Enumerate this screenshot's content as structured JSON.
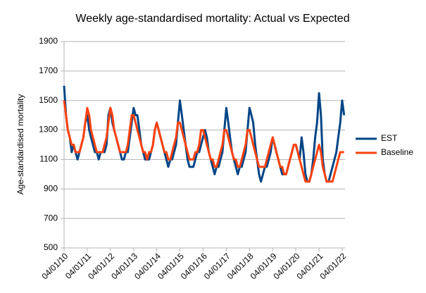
{
  "chart_data": {
    "type": "line",
    "title": "Weekly age-standardised mortality: Actual vs Expected",
    "y_label": "Age-standardised mortality",
    "x": [
      "04/01/10",
      "04/02/10",
      "04/03/10",
      "04/04/10",
      "04/05/10",
      "04/06/10",
      "04/07/10",
      "04/08/10",
      "04/09/10",
      "04/10/10",
      "04/11/10",
      "04/12/10",
      "04/01/11",
      "04/02/11",
      "04/03/11",
      "04/04/11",
      "04/05/11",
      "04/06/11",
      "04/07/11",
      "04/08/11",
      "04/09/11",
      "04/10/11",
      "04/11/11",
      "04/12/11",
      "04/01/12",
      "04/02/12",
      "04/03/12",
      "04/04/12",
      "04/05/12",
      "04/06/12",
      "04/07/12",
      "04/08/12",
      "04/09/12",
      "04/10/12",
      "04/11/12",
      "04/12/12",
      "04/01/13",
      "04/02/13",
      "04/03/13",
      "04/04/13",
      "04/05/13",
      "04/06/13",
      "04/07/13",
      "04/08/13",
      "04/09/13",
      "04/10/13",
      "04/11/13",
      "04/12/13",
      "04/01/14",
      "04/02/14",
      "04/03/14",
      "04/04/14",
      "04/05/14",
      "04/06/14",
      "04/07/14",
      "04/08/14",
      "04/09/14",
      "04/10/14",
      "04/11/14",
      "04/12/14",
      "04/01/15",
      "04/02/15",
      "04/03/15",
      "04/04/15",
      "04/05/15",
      "04/06/15",
      "04/07/15",
      "04/08/15",
      "04/09/15",
      "04/10/15",
      "04/11/15",
      "04/12/15",
      "04/01/16",
      "04/02/16",
      "04/03/16",
      "04/04/16",
      "04/05/16",
      "04/06/16",
      "04/07/16",
      "04/08/16",
      "04/09/16",
      "04/10/16",
      "04/11/16",
      "04/12/16",
      "04/01/17",
      "04/02/17",
      "04/03/17",
      "04/04/17",
      "04/05/17",
      "04/06/17",
      "04/07/17",
      "04/08/17",
      "04/09/17",
      "04/10/17",
      "04/11/17",
      "04/12/17",
      "04/01/18",
      "04/02/18",
      "04/03/18",
      "04/04/18",
      "04/05/18",
      "04/06/18",
      "04/07/18",
      "04/08/18",
      "04/09/18",
      "04/10/18",
      "04/11/18",
      "04/12/18",
      "04/01/19",
      "04/02/19",
      "04/03/19",
      "04/04/19",
      "04/05/19",
      "04/06/19",
      "04/07/19",
      "04/08/19",
      "04/09/19",
      "04/10/19",
      "04/11/19",
      "04/12/19",
      "04/01/20",
      "04/02/20",
      "04/03/20",
      "04/04/20",
      "04/05/20",
      "04/06/20",
      "04/07/20",
      "04/08/20",
      "04/09/20",
      "04/10/20",
      "04/11/20",
      "04/12/20",
      "04/01/21",
      "04/02/21",
      "04/03/21",
      "04/04/21",
      "04/05/21",
      "04/06/21",
      "04/07/21",
      "04/08/21",
      "04/09/21",
      "04/10/21",
      "04/11/21",
      "04/12/21",
      "04/01/22",
      "04/02/22"
    ],
    "series": [
      {
        "name": "EST",
        "color": "#004586",
        "values": [
          1600,
          1400,
          1300,
          1250,
          1150,
          1200,
          1150,
          1100,
          1150,
          1200,
          1250,
          1350,
          1400,
          1300,
          1250,
          1200,
          1150,
          1150,
          1100,
          1150,
          1150,
          1150,
          1200,
          1400,
          1450,
          1350,
          1300,
          1250,
          1200,
          1150,
          1100,
          1100,
          1150,
          1150,
          1250,
          1350,
          1450,
          1400,
          1400,
          1300,
          1200,
          1150,
          1100,
          1100,
          1100,
          1150,
          1200,
          1300,
          1350,
          1300,
          1250,
          1200,
          1150,
          1100,
          1050,
          1100,
          1100,
          1150,
          1200,
          1350,
          1500,
          1400,
          1300,
          1200,
          1100,
          1050,
          1050,
          1050,
          1100,
          1150,
          1150,
          1200,
          1250,
          1300,
          1250,
          1150,
          1100,
          1050,
          1000,
          1050,
          1050,
          1100,
          1150,
          1300,
          1450,
          1350,
          1250,
          1150,
          1100,
          1050,
          1000,
          1050,
          1050,
          1100,
          1150,
          1300,
          1450,
          1400,
          1350,
          1200,
          1100,
          1000,
          950,
          1000,
          1050,
          1050,
          1100,
          1150,
          1250,
          1200,
          1150,
          1100,
          1050,
          1000,
          1000,
          1000,
          1050,
          1100,
          1150,
          1200,
          1200,
          1150,
          1100,
          1250,
          1150,
          1000,
          950,
          950,
          1000,
          1100,
          1250,
          1350,
          1550,
          1400,
          1100,
          1000,
          950,
          950,
          1000,
          1050,
          1100,
          1150,
          1250,
          1350,
          1500,
          1400
        ]
      },
      {
        "name": "Baseline",
        "color": "#ff420e",
        "values": [
          1500,
          1400,
          1300,
          1250,
          1200,
          1200,
          1150,
          1150,
          1150,
          1200,
          1250,
          1350,
          1450,
          1400,
          1300,
          1250,
          1200,
          1150,
          1150,
          1150,
          1150,
          1200,
          1250,
          1350,
          1450,
          1400,
          1300,
          1250,
          1200,
          1150,
          1150,
          1150,
          1150,
          1200,
          1300,
          1400,
          1400,
          1350,
          1300,
          1250,
          1200,
          1150,
          1150,
          1100,
          1150,
          1150,
          1200,
          1300,
          1350,
          1300,
          1250,
          1200,
          1150,
          1150,
          1100,
          1100,
          1150,
          1200,
          1250,
          1350,
          1350,
          1300,
          1250,
          1200,
          1150,
          1100,
          1100,
          1100,
          1150,
          1150,
          1200,
          1300,
          1300,
          1250,
          1200,
          1150,
          1100,
          1100,
          1050,
          1050,
          1100,
          1150,
          1200,
          1300,
          1300,
          1250,
          1200,
          1150,
          1100,
          1100,
          1050,
          1050,
          1100,
          1150,
          1200,
          1300,
          1300,
          1250,
          1200,
          1150,
          1100,
          1050,
          1050,
          1050,
          1050,
          1100,
          1150,
          1200,
          1250,
          1200,
          1150,
          1100,
          1050,
          1050,
          1000,
          1000,
          1050,
          1100,
          1150,
          1200,
          1200,
          1150,
          1100,
          1050,
          1000,
          950,
          950,
          950,
          1000,
          1050,
          1100,
          1150,
          1200,
          1150,
          1050,
          1000,
          950,
          950,
          950,
          950,
          1000,
          1050,
          1100,
          1150,
          1150,
          1150
        ]
      }
    ],
    "xlim": [
      "04/01/10",
      "18/02/22"
    ],
    "xticks": [
      "04/01/10",
      "04/01/11",
      "04/01/12",
      "04/01/13",
      "04/01/14",
      "04/01/15",
      "04/01/16",
      "04/01/17",
      "04/01/18",
      "04/01/19",
      "04/01/20",
      "04/01/21",
      "04/01/22"
    ],
    "ylim": [
      500,
      1900
    ],
    "yticks": [
      500,
      700,
      900,
      1100,
      1300,
      1500,
      1700,
      1900
    ],
    "grid": true,
    "legend": "right"
  }
}
